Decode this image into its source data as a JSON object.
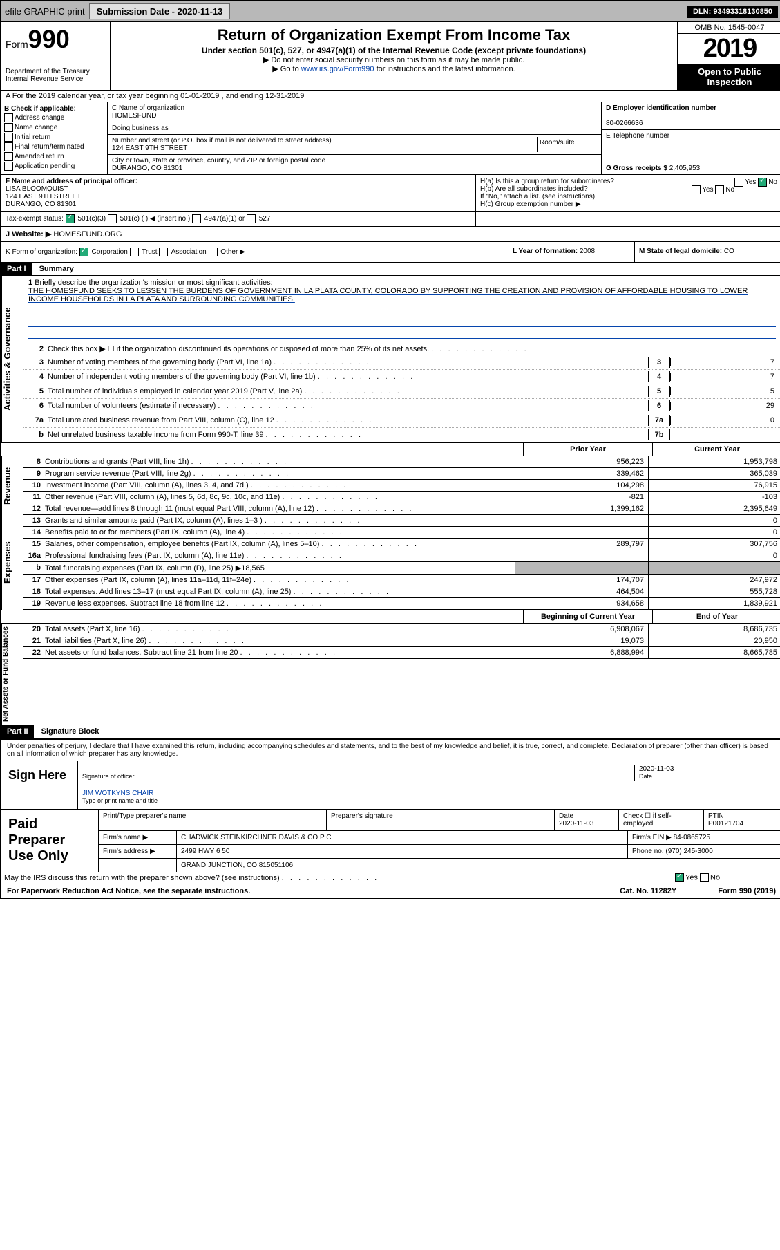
{
  "topbar": {
    "efile": "efile GRAPHIC print",
    "subdate_lbl": "Submission Date - ",
    "subdate": "2020-11-13",
    "dln_lbl": "DLN: ",
    "dln": "93493318130850"
  },
  "header": {
    "form": "Form",
    "num": "990",
    "dept": "Department of the Treasury\nInternal Revenue Service",
    "title": "Return of Organization Exempt From Income Tax",
    "sub": "Under section 501(c), 527, or 4947(a)(1) of the Internal Revenue Code (except private foundations)",
    "l1": "▶ Do not enter social security numbers on this form as it may be made public.",
    "l2_a": "▶ Go to ",
    "l2_link": "www.irs.gov/Form990",
    "l2_b": " for instructions and the latest information.",
    "omb": "OMB No. 1545-0047",
    "year": "2019",
    "open": "Open to Public Inspection"
  },
  "rowA": {
    "txt": "A For the 2019 calendar year, or tax year beginning 01-01-2019   , and ending 12-31-2019"
  },
  "B": {
    "hdr": "B Check if applicable:",
    "opts": [
      "Address change",
      "Name change",
      "Initial return",
      "Final return/terminated",
      "Amended return",
      "Application pending"
    ]
  },
  "C": {
    "name_lbl": "C Name of organization",
    "name": "HOMESFUND",
    "dba_lbl": "Doing business as",
    "addr_lbl": "Number and street (or P.O. box if mail is not delivered to street address)",
    "room_lbl": "Room/suite",
    "addr": "124 EAST 9TH STREET",
    "city_lbl": "City or town, state or province, country, and ZIP or foreign postal code",
    "city": "DURANGO, CO  81301"
  },
  "D": {
    "lbl": "D Employer identification number",
    "val": "80-0266636"
  },
  "E": {
    "lbl": "E Telephone number"
  },
  "G": {
    "lbl": "G Gross receipts $ ",
    "val": "2,405,953"
  },
  "F": {
    "lbl": "F  Name and address of principal officer:",
    "name": "LISA BLOOMQUIST",
    "addr1": "124 EAST 9TH STREET",
    "addr2": "DURANGO, CO  81301"
  },
  "H": {
    "a": "H(a)  Is this a group return for subordinates?",
    "b": "H(b)  Are all subordinates included?",
    "b2": "If \"No,\" attach a list. (see instructions)",
    "c": "H(c)  Group exemption number ▶",
    "yes": "Yes",
    "no": "No"
  },
  "I": {
    "lbl": "Tax-exempt status:",
    "o1": "501(c)(3)",
    "o2": "501(c) (  ) ◀ (insert no.)",
    "o3": "4947(a)(1) or",
    "o4": "527"
  },
  "J": {
    "lbl": "J   Website: ▶",
    "val": "HOMESFUND.ORG"
  },
  "K": {
    "lbl": "K Form of organization:",
    "o1": "Corporation",
    "o2": "Trust",
    "o3": "Association",
    "o4": "Other ▶"
  },
  "L": {
    "lbl": "L Year of formation: ",
    "val": "2008"
  },
  "M": {
    "lbl": "M State of legal domicile: ",
    "val": "CO"
  },
  "part1": {
    "hdr": "Part I",
    "title": "Summary"
  },
  "mission": {
    "num": "1",
    "lbl": "Briefly describe the organization's mission or most significant activities:",
    "txt": "THE HOMESFUND SEEKS TO LESSEN THE BURDENS OF GOVERNMENT IN LA PLATA COUNTY, COLORADO BY SUPPORTING THE CREATION AND PROVISION OF AFFORDABLE HOUSING TO LOWER INCOME HOUSEHOLDS IN LA PLATA AND SURROUNDING COMMUNITIES."
  },
  "gov": {
    "label": "Activities & Governance",
    "lines": [
      {
        "n": "2",
        "t": "Check this box ▶ ☐  if the organization discontinued its operations or disposed of more than 25% of its net assets."
      },
      {
        "n": "3",
        "t": "Number of voting members of the governing body (Part VI, line 1a)",
        "b": "3",
        "v": "7"
      },
      {
        "n": "4",
        "t": "Number of independent voting members of the governing body (Part VI, line 1b)",
        "b": "4",
        "v": "7"
      },
      {
        "n": "5",
        "t": "Total number of individuals employed in calendar year 2019 (Part V, line 2a)",
        "b": "5",
        "v": "5"
      },
      {
        "n": "6",
        "t": "Total number of volunteers (estimate if necessary)",
        "b": "6",
        "v": "29"
      },
      {
        "n": "7a",
        "t": "Total unrelated business revenue from Part VIII, column (C), line 12",
        "b": "7a",
        "v": "0"
      },
      {
        "n": "b",
        "t": "Net unrelated business taxable income from Form 990-T, line 39",
        "b": "7b",
        "v": ""
      }
    ]
  },
  "cols": {
    "py": "Prior Year",
    "cy": "Current Year",
    "boy": "Beginning of Current Year",
    "eoy": "End of Year"
  },
  "rev": {
    "label": "Revenue",
    "lines": [
      {
        "n": "8",
        "t": "Contributions and grants (Part VIII, line 1h)",
        "py": "956,223",
        "cy": "1,953,798"
      },
      {
        "n": "9",
        "t": "Program service revenue (Part VIII, line 2g)",
        "py": "339,462",
        "cy": "365,039"
      },
      {
        "n": "10",
        "t": "Investment income (Part VIII, column (A), lines 3, 4, and 7d )",
        "py": "104,298",
        "cy": "76,915"
      },
      {
        "n": "11",
        "t": "Other revenue (Part VIII, column (A), lines 5, 6d, 8c, 9c, 10c, and 11e)",
        "py": "-821",
        "cy": "-103"
      },
      {
        "n": "12",
        "t": "Total revenue—add lines 8 through 11 (must equal Part VIII, column (A), line 12)",
        "py": "1,399,162",
        "cy": "2,395,649"
      }
    ]
  },
  "exp": {
    "label": "Expenses",
    "lines": [
      {
        "n": "13",
        "t": "Grants and similar amounts paid (Part IX, column (A), lines 1–3 )",
        "py": "",
        "cy": "0"
      },
      {
        "n": "14",
        "t": "Benefits paid to or for members (Part IX, column (A), line 4)",
        "py": "",
        "cy": "0"
      },
      {
        "n": "15",
        "t": "Salaries, other compensation, employee benefits (Part IX, column (A), lines 5–10)",
        "py": "289,797",
        "cy": "307,756"
      },
      {
        "n": "16a",
        "t": "Professional fundraising fees (Part IX, column (A), line 11e)",
        "py": "",
        "cy": "0"
      },
      {
        "n": "b",
        "t": "Total fundraising expenses (Part IX, column (D), line 25) ▶18,565",
        "shade": true
      },
      {
        "n": "17",
        "t": "Other expenses (Part IX, column (A), lines 11a–11d, 11f–24e)",
        "py": "174,707",
        "cy": "247,972"
      },
      {
        "n": "18",
        "t": "Total expenses. Add lines 13–17 (must equal Part IX, column (A), line 25)",
        "py": "464,504",
        "cy": "555,728"
      },
      {
        "n": "19",
        "t": "Revenue less expenses. Subtract line 18 from line 12",
        "py": "934,658",
        "cy": "1,839,921"
      }
    ]
  },
  "net": {
    "label": "Net Assets or Fund Balances",
    "lines": [
      {
        "n": "20",
        "t": "Total assets (Part X, line 16)",
        "py": "6,908,067",
        "cy": "8,686,735"
      },
      {
        "n": "21",
        "t": "Total liabilities (Part X, line 26)",
        "py": "19,073",
        "cy": "20,950"
      },
      {
        "n": "22",
        "t": "Net assets or fund balances. Subtract line 21 from line 20",
        "py": "6,888,994",
        "cy": "8,665,785"
      }
    ]
  },
  "part2": {
    "hdr": "Part II",
    "title": "Signature Block"
  },
  "sig": {
    "decl": "Under penalties of perjury, I declare that I have examined this return, including accompanying schedules and statements, and to the best of my knowledge and belief, it is true, correct, and complete. Declaration of preparer (other than officer) is based on all information of which preparer has any knowledge.",
    "here": "Sign Here",
    "sig_lbl": "Signature of officer",
    "date_lbl": "Date",
    "date": "2020-11-03",
    "name": "JIM WOTKYNS CHAIR",
    "name_lbl": "Type or print name and title"
  },
  "prep": {
    "lbl": "Paid Preparer Use Only",
    "r1": {
      "a": "Print/Type preparer's name",
      "b": "Preparer's signature",
      "c": "Date",
      "cv": "2020-11-03",
      "d": "Check ☐ if self-employed",
      "e": "PTIN",
      "ev": "P00121704"
    },
    "r2": {
      "a": "Firm's name    ▶",
      "av": "CHADWICK STEINKIRCHNER DAVIS & CO P C",
      "b": "Firm's EIN ▶",
      "bv": "84-0865725"
    },
    "r3": {
      "a": "Firm's address ▶",
      "av": "2499 HWY 6 50",
      "b": "Phone no. ",
      "bv": "(970) 245-3000"
    },
    "r4": "GRAND JUNCTION, CO  815051106"
  },
  "discuss": {
    "t": "May the IRS discuss this return with the preparer shown above? (see instructions)",
    "yes": "Yes",
    "no": "No"
  },
  "footer": {
    "l": "For Paperwork Reduction Act Notice, see the separate instructions.",
    "m": "Cat. No. 11282Y",
    "r": "Form 990 (2019)"
  }
}
